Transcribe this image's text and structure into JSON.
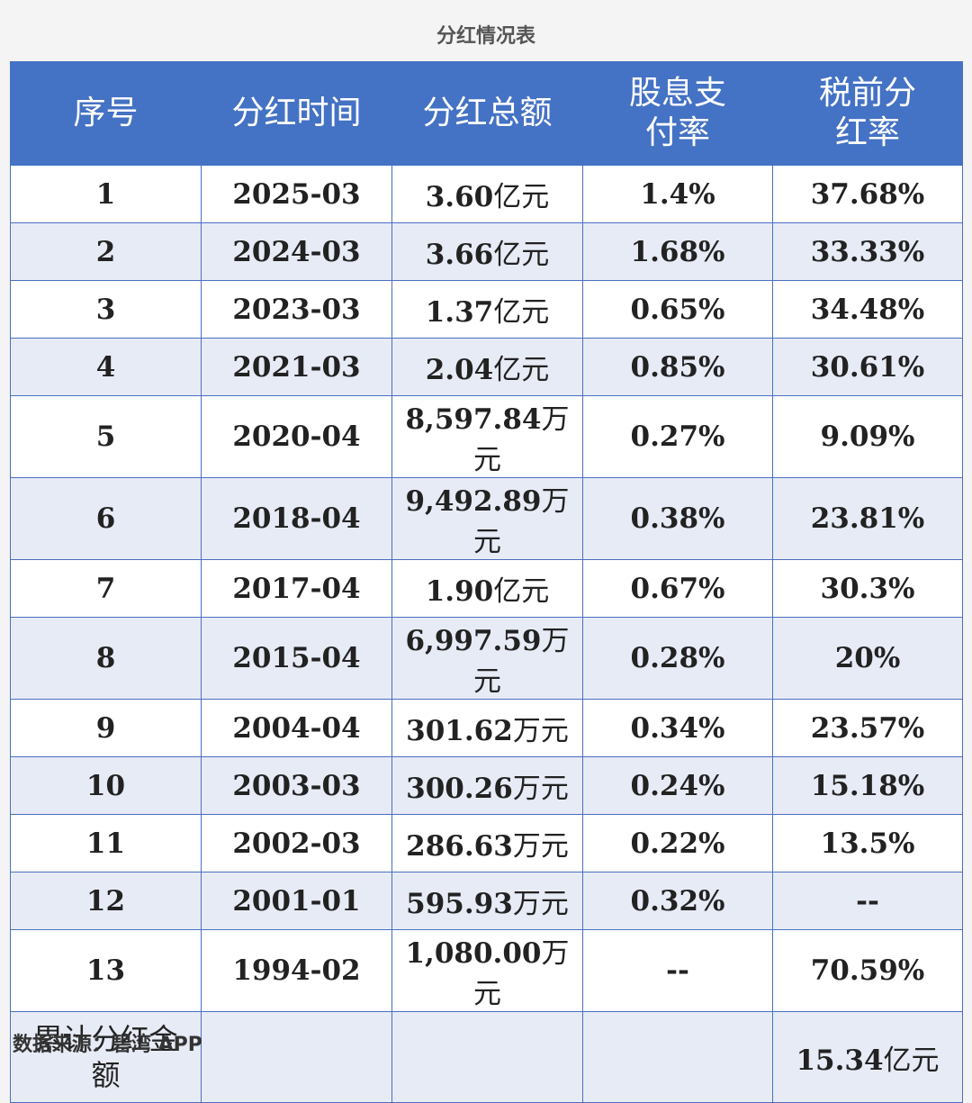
{
  "title": "分红情况表",
  "watermark": "碧湾App",
  "headers": [
    "序号",
    "分红时间",
    "分红总额",
    "股息支付率",
    "税前分红率"
  ],
  "rows": [
    {
      "no": "1",
      "date": "2025-03",
      "amount": "3.60",
      "unit": "亿元",
      "payout": "1.4%",
      "pretax": "37.68%"
    },
    {
      "no": "2",
      "date": "2024-03",
      "amount": "3.66",
      "unit": "亿元",
      "payout": "1.68%",
      "pretax": "33.33%"
    },
    {
      "no": "3",
      "date": "2023-03",
      "amount": "1.37",
      "unit": "亿元",
      "payout": "0.65%",
      "pretax": "34.48%"
    },
    {
      "no": "4",
      "date": "2021-03",
      "amount": "2.04",
      "unit": "亿元",
      "payout": "0.85%",
      "pretax": "30.61%"
    },
    {
      "no": "5",
      "date": "2020-04",
      "amount": "8,597.84",
      "unit": "万元",
      "payout": "0.27%",
      "pretax": "9.09%"
    },
    {
      "no": "6",
      "date": "2018-04",
      "amount": "9,492.89",
      "unit": "万元",
      "payout": "0.38%",
      "pretax": "23.81%"
    },
    {
      "no": "7",
      "date": "2017-04",
      "amount": "1.90",
      "unit": "亿元",
      "payout": "0.67%",
      "pretax": "30.3%"
    },
    {
      "no": "8",
      "date": "2015-04",
      "amount": "6,997.59",
      "unit": "万元",
      "payout": "0.28%",
      "pretax": "20%"
    },
    {
      "no": "9",
      "date": "2004-04",
      "amount": "301.62",
      "unit": "万元",
      "payout": "0.34%",
      "pretax": "23.57%"
    },
    {
      "no": "10",
      "date": "2003-03",
      "amount": "300.26",
      "unit": "万元",
      "payout": "0.24%",
      "pretax": "15.18%"
    },
    {
      "no": "11",
      "date": "2002-03",
      "amount": "286.63",
      "unit": "万元",
      "payout": "0.22%",
      "pretax": "13.5%"
    },
    {
      "no": "12",
      "date": "2001-01",
      "amount": "595.93",
      "unit": "万元",
      "payout": "0.32%",
      "pretax": "--"
    },
    {
      "no": "13",
      "date": "1994-02",
      "amount": "1,080.00",
      "unit": "万元",
      "payout": "--",
      "pretax": "70.59%"
    }
  ],
  "total": {
    "label": "累计分红金额",
    "value": "15.34",
    "unit": "亿元"
  },
  "source": "数据来源：碧湾 APP",
  "colors": {
    "header_bg": "#4472c4",
    "alt_row_bg": "#e7ebf6",
    "border": "#4a6fc1"
  }
}
